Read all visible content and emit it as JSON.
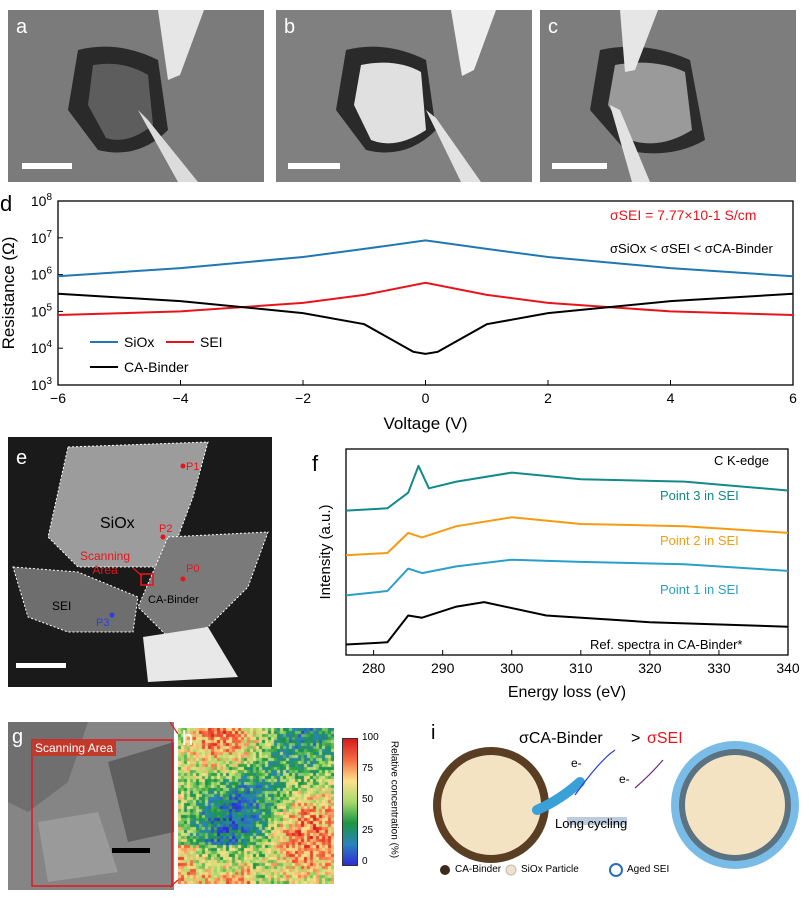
{
  "panels": {
    "a": "a",
    "b": "b",
    "c": "c",
    "d": "d",
    "e": "e",
    "f": "f",
    "g": "g",
    "h": "h",
    "i": "i"
  },
  "panel_d": {
    "annotation_sigma_sei": "σSEI = 7.77×10-1 S/cm",
    "annotation_order": "σSiOx < σSEI < σCA-Binder",
    "legend": {
      "siox": "SiOx",
      "sei": "SEI",
      "binder": "CA-Binder"
    },
    "colors": {
      "siox": "#1f77b4",
      "sei": "#e8141b",
      "binder": "#000000"
    }
  },
  "panel_e": {
    "siox": "SiOx",
    "scanning_area": "Scanning Area",
    "sei": "SEI",
    "binder": "CA-Binder",
    "p0": "P0",
    "p1": "P1",
    "p2": "P2",
    "p3": "P3"
  },
  "panel_f": {
    "title": "C K-edge",
    "point3": "Point 3 in SEI",
    "point2": "Point 2 in SEI",
    "point1": "Point 1 in SEI",
    "ref": "Ref. spectra in CA-Binder*",
    "colors": {
      "point3": "#138a8a",
      "point2": "#f39c12",
      "point1": "#2a9fc9",
      "ref": "#000000"
    }
  },
  "panel_g": {
    "label": "Scanning Area"
  },
  "panel_h": {
    "colorbar_label": "Relative concentration (%)",
    "ticks": [
      "100",
      "75",
      "50",
      "25",
      "0"
    ]
  },
  "panel_i": {
    "sigma_binder": "σCA-Binder",
    "gt": ">",
    "sigma_sei": "σSEI",
    "electron": "e-",
    "long_cycling": "Long cycling",
    "legend_binder": "CA-Binder",
    "legend_particle": "SiOx Particle",
    "legend_sei": "Aged SEI"
  },
  "chart_data": [
    {
      "type": "line",
      "xlabel": "Voltage (V)",
      "ylabel": "Resistance (Ω)",
      "xlim": [
        -6,
        6
      ],
      "ylim": [
        1000,
        100000000
      ],
      "yscale": "log",
      "x_ticks": [
        "-6",
        "-4",
        "-2",
        "0",
        "2",
        "4",
        "6"
      ],
      "y_ticks": [
        "10^3",
        "10^4",
        "10^5",
        "10^6",
        "10^7",
        "10^8"
      ],
      "series": [
        {
          "name": "SiOx",
          "x": [
            -6,
            -4,
            -2,
            -1,
            0,
            1,
            2,
            4,
            6
          ],
          "y": [
            900000,
            1500000,
            3000000,
            5000000,
            8500000,
            5000000,
            3000000,
            1500000,
            900000
          ]
        },
        {
          "name": "SEI",
          "x": [
            -6,
            -4,
            -2,
            -1,
            0,
            1,
            2,
            4,
            6
          ],
          "y": [
            80000,
            100000,
            170000,
            280000,
            600000,
            280000,
            170000,
            100000,
            80000
          ]
        },
        {
          "name": "CA-Binder",
          "x": [
            -6,
            -4,
            -2,
            -1,
            -0.2,
            0,
            0.2,
            1,
            2,
            4,
            6
          ],
          "y": [
            300000,
            190000,
            90000,
            45000,
            8000,
            7000,
            8000,
            45000,
            90000,
            190000,
            300000
          ]
        }
      ],
      "legend": "bottom-left",
      "grid": false
    },
    {
      "type": "line",
      "xlabel": "Energy loss (eV)",
      "ylabel": "Intensity (a.u.)",
      "xlim": [
        276,
        340
      ],
      "x_ticks": [
        "280",
        "290",
        "300",
        "310",
        "320",
        "330",
        "340"
      ],
      "series": [
        {
          "name": "Point 3 in SEI",
          "x": [
            276,
            282,
            285,
            286.5,
            288,
            292,
            300,
            310,
            325,
            340
          ],
          "y": [
            3.1,
            3.15,
            3.5,
            4.1,
            3.6,
            3.75,
            3.95,
            3.8,
            3.75,
            3.55
          ]
        },
        {
          "name": "Point 2 in SEI",
          "x": [
            276,
            282,
            285,
            287,
            292,
            300,
            310,
            325,
            340
          ],
          "y": [
            2.1,
            2.15,
            2.6,
            2.5,
            2.75,
            2.95,
            2.8,
            2.75,
            2.6
          ]
        },
        {
          "name": "Point 1 in SEI",
          "x": [
            276,
            282,
            285,
            287,
            292,
            300,
            310,
            325,
            340
          ],
          "y": [
            1.2,
            1.3,
            1.8,
            1.7,
            1.85,
            2.0,
            1.95,
            1.9,
            1.75
          ]
        },
        {
          "name": "Ref. spectra in CA-Binder*",
          "x": [
            276,
            282,
            285,
            287,
            292,
            296,
            305,
            320,
            340
          ],
          "y": [
            0.1,
            0.15,
            0.75,
            0.7,
            0.95,
            1.05,
            0.75,
            0.6,
            0.5
          ]
        }
      ],
      "grid": false
    }
  ]
}
